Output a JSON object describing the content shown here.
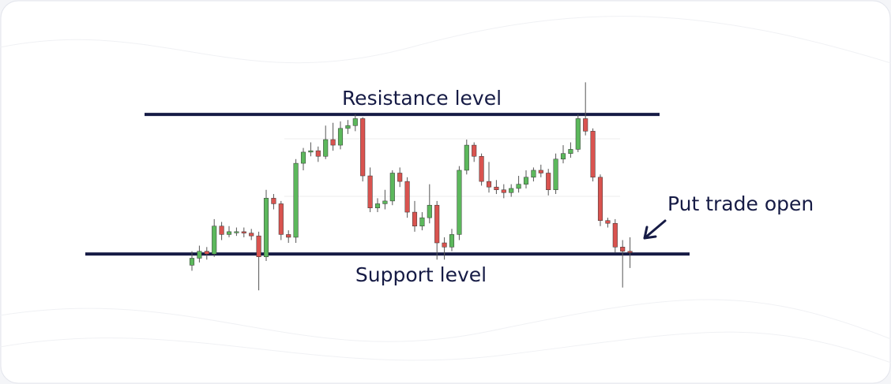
{
  "chart_data": {
    "type": "candlestick",
    "ylim": [
      -40,
      130
    ],
    "up_color": "#5cb85c",
    "down_color": "#d9534f",
    "open": [
      -8,
      -3,
      2,
      0,
      20,
      14,
      16,
      16,
      15,
      13,
      -2,
      40,
      36,
      14,
      12,
      65,
      73,
      74,
      70,
      82,
      78,
      90,
      92,
      97,
      56,
      33,
      36,
      38,
      58,
      52,
      30,
      20,
      26,
      35,
      8,
      5,
      14,
      60,
      78,
      70,
      52,
      48,
      46,
      44,
      47,
      50,
      55,
      60,
      58,
      46,
      68,
      72,
      75,
      97,
      88,
      55,
      24,
      22,
      5,
      2
    ],
    "high": [
      2,
      6,
      5,
      25,
      23,
      20,
      19,
      19,
      18,
      16,
      46,
      43,
      38,
      17,
      68,
      76,
      80,
      77,
      92,
      94,
      95,
      96,
      100,
      98,
      62,
      40,
      46,
      60,
      62,
      55,
      38,
      30,
      50,
      38,
      12,
      18,
      63,
      82,
      80,
      72,
      66,
      53,
      50,
      50,
      56,
      60,
      62,
      64,
      61,
      72,
      78,
      80,
      100,
      123,
      90,
      57,
      26,
      25,
      10,
      12
    ],
    "low": [
      -12,
      -6,
      -4,
      -2,
      10,
      12,
      13,
      12,
      10,
      -26,
      -5,
      32,
      10,
      8,
      8,
      60,
      70,
      66,
      68,
      74,
      75,
      86,
      88,
      52,
      30,
      30,
      32,
      35,
      48,
      26,
      16,
      17,
      22,
      -4,
      -4,
      2,
      10,
      57,
      66,
      49,
      44,
      43,
      40,
      41,
      44,
      47,
      52,
      55,
      42,
      43,
      65,
      69,
      73,
      85,
      52,
      20,
      19,
      1,
      -24,
      -10
    ],
    "close": [
      -3,
      2,
      0,
      20,
      14,
      16,
      16,
      15,
      13,
      -2,
      40,
      36,
      14,
      12,
      65,
      73,
      74,
      70,
      82,
      78,
      90,
      92,
      97,
      56,
      33,
      36,
      38,
      58,
      52,
      30,
      20,
      26,
      35,
      8,
      5,
      14,
      60,
      78,
      70,
      52,
      48,
      46,
      44,
      47,
      50,
      55,
      60,
      58,
      46,
      68,
      72,
      75,
      97,
      88,
      55,
      24,
      22,
      5,
      2,
      1
    ],
    "levels": [
      {
        "label": "Resistance level",
        "value": 100,
        "color": "#161b45"
      },
      {
        "label": "Support level",
        "value": 0,
        "color": "#161b45"
      }
    ],
    "annotation": "Put trade open"
  }
}
